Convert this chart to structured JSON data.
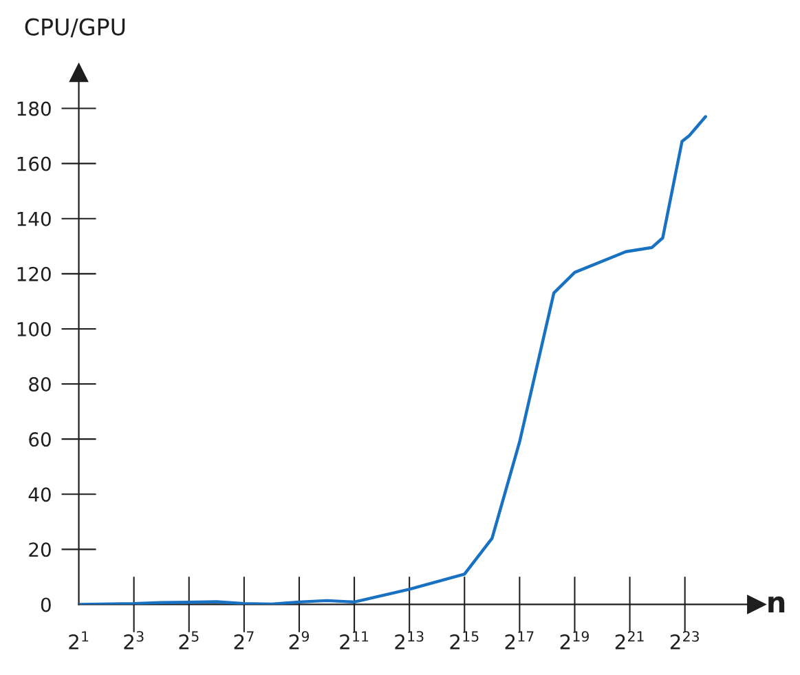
{
  "chart_data": {
    "type": "line",
    "ylabel": "CPU/GPU",
    "xlabel": "n",
    "log": "x",
    "x": [
      2,
      8,
      16,
      32,
      64,
      128,
      256,
      512,
      1024,
      2048,
      8192,
      32768,
      65536,
      131072,
      310000,
      524288,
      1900000,
      3650000,
      4800000,
      7800000,
      9300000,
      14100000
    ],
    "series": [
      {
        "color": "#1971c2",
        "values": [
          0,
          0.3,
          0.7,
          0.8,
          1.0,
          0.3,
          0.1,
          0.9,
          1.4,
          0.9,
          5.5,
          11,
          24,
          59,
          113,
          120.5,
          128,
          129.5,
          133,
          168,
          170,
          177
        ]
      }
    ],
    "xlim": [
      2,
      51000000
    ],
    "ylim": [
      0,
      193
    ],
    "xticks": [
      {
        "value": 2,
        "label": "2$^{1}$"
      },
      {
        "value": 8,
        "label": "2$^{3}$"
      },
      {
        "value": 32,
        "label": "2$^{5}$"
      },
      {
        "value": 128,
        "label": "2$^{7}$"
      },
      {
        "value": 512,
        "label": "2$^{9}$"
      },
      {
        "value": 2048,
        "label": "2$^{11}$"
      },
      {
        "value": 8192,
        "label": "2$^{13}$"
      },
      {
        "value": 32768,
        "label": "2$^{15}$"
      },
      {
        "value": 131072,
        "label": "2$^{17}$"
      },
      {
        "value": 524288,
        "label": "2$^{19}$"
      },
      {
        "value": 2097152,
        "label": "2$^{21}$"
      },
      {
        "value": 8388608,
        "label": "2$^{23}$"
      }
    ],
    "yticks": [
      0,
      20,
      40,
      60,
      80,
      100,
      120,
      140,
      160,
      180
    ],
    "marker": "none",
    "line_style": "solid"
  }
}
